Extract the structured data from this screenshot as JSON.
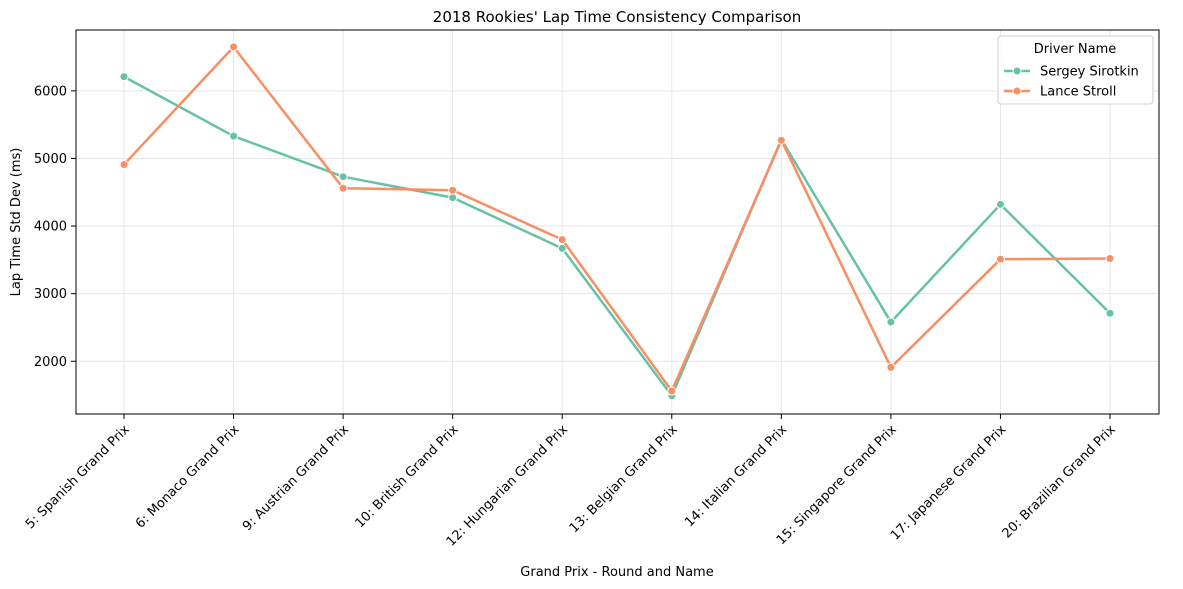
{
  "chart_data": {
    "type": "line",
    "title": "2018 Rookies' Lap Time Consistency Comparison",
    "xlabel": "Grand Prix - Round and Name",
    "ylabel": "Lap Time Std Dev (ms)",
    "categories": [
      "5: Spanish Grand Prix",
      "6: Monaco Grand Prix",
      "9: Austrian Grand Prix",
      "10: British Grand Prix",
      "12: Hungarian Grand Prix",
      "13: Belgian Grand Prix",
      "14: Italian Grand Prix",
      "15: Singapore Grand Prix",
      "17: Japanese Grand Prix",
      "20: Brazilian Grand Prix"
    ],
    "yticks": [
      2000,
      3000,
      4000,
      5000,
      6000
    ],
    "ylim": [
      1220,
      6900
    ],
    "grid": true,
    "legend": {
      "title": "Driver Name",
      "placement": "top-right"
    },
    "series": [
      {
        "name": "Sergey Sirotkin",
        "color": "#66c2a5",
        "values": [
          6210,
          5330,
          4730,
          4420,
          3670,
          1490,
          5280,
          2580,
          4320,
          2710
        ]
      },
      {
        "name": "Lance Stroll",
        "color": "#fc8d62",
        "values": [
          4910,
          6650,
          4560,
          4530,
          3800,
          1560,
          5270,
          1910,
          3510,
          3520
        ]
      }
    ]
  }
}
